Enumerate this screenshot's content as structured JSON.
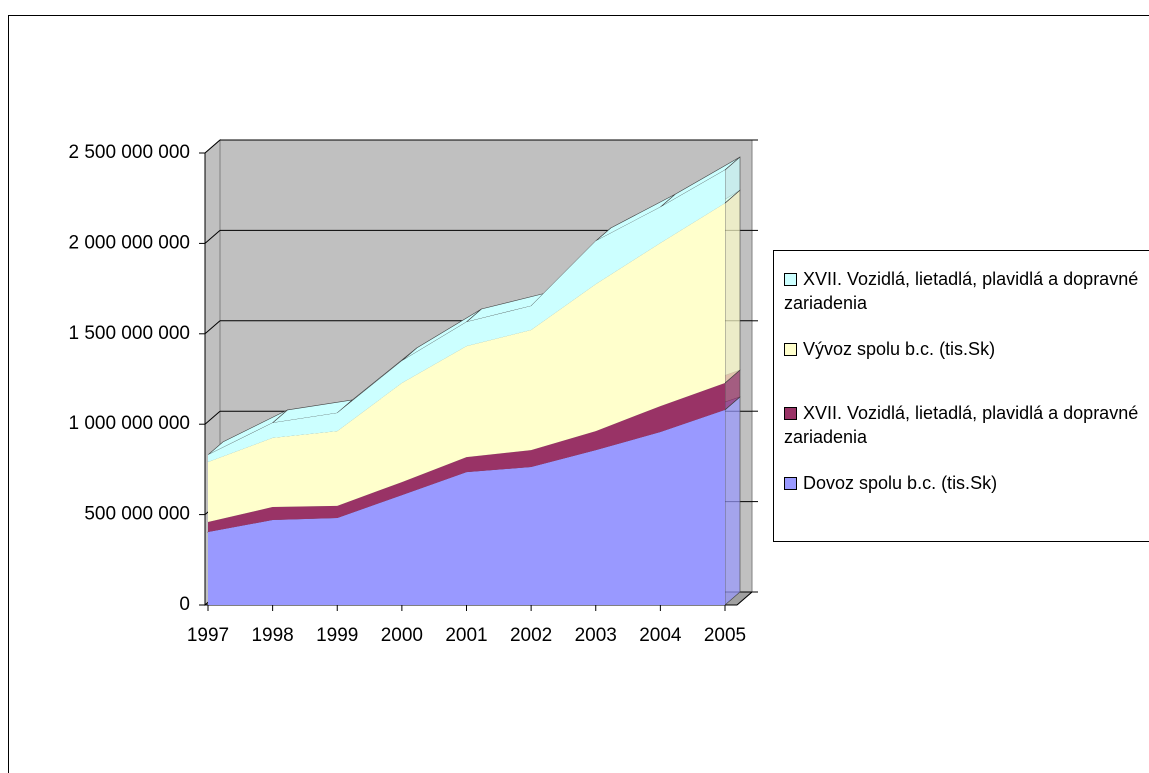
{
  "chart_data": {
    "type": "area3d",
    "categories": [
      "1997",
      "1998",
      "1999",
      "2000",
      "2001",
      "2002",
      "2003",
      "2004",
      "2005"
    ],
    "series": [
      {
        "name": "Dovoz spolu b.c. (tis.Sk)",
        "color": "#9999ff",
        "values": [
          404000000,
          470000000,
          481000000,
          608000000,
          735000000,
          763000000,
          857000000,
          957000000,
          1079000000
        ]
      },
      {
        "name": "XVII. Vozidlá, lietadlá, plavidlá a dopravné zariadenia",
        "color": "#993366",
        "values": [
          55000000,
          72000000,
          67000000,
          72000000,
          83000000,
          94000000,
          105000000,
          143000000,
          149000000
        ]
      },
      {
        "name": "Vývoz spolu b.c. (tis.Sk)",
        "color": "#ffffcc",
        "values": [
          332000000,
          382000000,
          414000000,
          548000000,
          614000000,
          664000000,
          813000000,
          902000000,
          995000000
        ]
      },
      {
        "name": "XVII. Vozidlá, lietadlá, plavidlá a dopravné zariadenia",
        "color": "#ccffff",
        "values": [
          39000000,
          83000000,
          100000000,
          122000000,
          133000000,
          133000000,
          238000000,
          199000000,
          183000000
        ]
      }
    ],
    "stacked": true,
    "ylim": [
      0,
      2500000000
    ],
    "yticks": [
      0,
      {
        "value": 500000000,
        "label": "500 000 000"
      },
      {
        "value": 1000000000,
        "label": "1 000 000 000"
      },
      {
        "value": 1500000000,
        "label": "1 500 000 000"
      },
      {
        "value": 2000000000,
        "label": "2 000 000 000"
      },
      {
        "value": 2500000000,
        "label": "2 500 000 000"
      }
    ],
    "grid": true,
    "legend": "right"
  }
}
